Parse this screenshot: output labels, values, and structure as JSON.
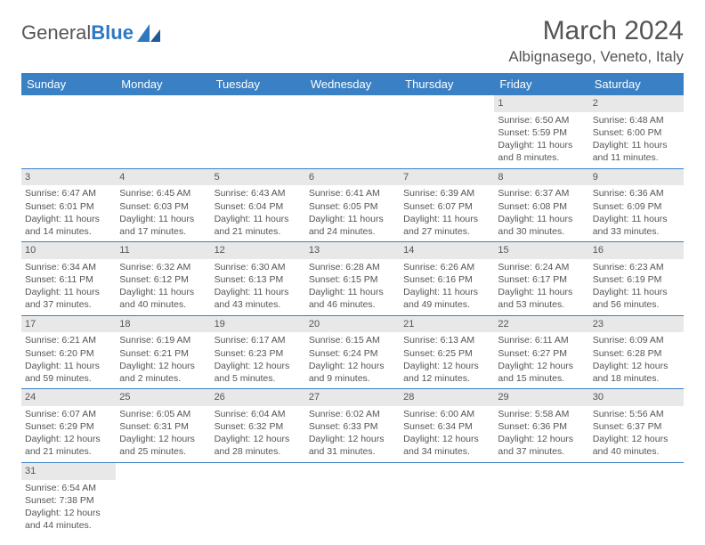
{
  "logo": {
    "text_a": "General",
    "text_b": "Blue"
  },
  "title": "March 2024",
  "location": "Albignasego, Veneto, Italy",
  "colors": {
    "header_bg": "#3a80c4",
    "header_text": "#ffffff",
    "daynum_bg": "#e8e8e8",
    "text": "#555555",
    "row_border": "#3a80c4"
  },
  "day_names": [
    "Sunday",
    "Monday",
    "Tuesday",
    "Wednesday",
    "Thursday",
    "Friday",
    "Saturday"
  ],
  "weeks": [
    [
      null,
      null,
      null,
      null,
      null,
      {
        "n": "1",
        "sr": "Sunrise: 6:50 AM",
        "ss": "Sunset: 5:59 PM",
        "d1": "Daylight: 11 hours",
        "d2": "and 8 minutes."
      },
      {
        "n": "2",
        "sr": "Sunrise: 6:48 AM",
        "ss": "Sunset: 6:00 PM",
        "d1": "Daylight: 11 hours",
        "d2": "and 11 minutes."
      }
    ],
    [
      {
        "n": "3",
        "sr": "Sunrise: 6:47 AM",
        "ss": "Sunset: 6:01 PM",
        "d1": "Daylight: 11 hours",
        "d2": "and 14 minutes."
      },
      {
        "n": "4",
        "sr": "Sunrise: 6:45 AM",
        "ss": "Sunset: 6:03 PM",
        "d1": "Daylight: 11 hours",
        "d2": "and 17 minutes."
      },
      {
        "n": "5",
        "sr": "Sunrise: 6:43 AM",
        "ss": "Sunset: 6:04 PM",
        "d1": "Daylight: 11 hours",
        "d2": "and 21 minutes."
      },
      {
        "n": "6",
        "sr": "Sunrise: 6:41 AM",
        "ss": "Sunset: 6:05 PM",
        "d1": "Daylight: 11 hours",
        "d2": "and 24 minutes."
      },
      {
        "n": "7",
        "sr": "Sunrise: 6:39 AM",
        "ss": "Sunset: 6:07 PM",
        "d1": "Daylight: 11 hours",
        "d2": "and 27 minutes."
      },
      {
        "n": "8",
        "sr": "Sunrise: 6:37 AM",
        "ss": "Sunset: 6:08 PM",
        "d1": "Daylight: 11 hours",
        "d2": "and 30 minutes."
      },
      {
        "n": "9",
        "sr": "Sunrise: 6:36 AM",
        "ss": "Sunset: 6:09 PM",
        "d1": "Daylight: 11 hours",
        "d2": "and 33 minutes."
      }
    ],
    [
      {
        "n": "10",
        "sr": "Sunrise: 6:34 AM",
        "ss": "Sunset: 6:11 PM",
        "d1": "Daylight: 11 hours",
        "d2": "and 37 minutes."
      },
      {
        "n": "11",
        "sr": "Sunrise: 6:32 AM",
        "ss": "Sunset: 6:12 PM",
        "d1": "Daylight: 11 hours",
        "d2": "and 40 minutes."
      },
      {
        "n": "12",
        "sr": "Sunrise: 6:30 AM",
        "ss": "Sunset: 6:13 PM",
        "d1": "Daylight: 11 hours",
        "d2": "and 43 minutes."
      },
      {
        "n": "13",
        "sr": "Sunrise: 6:28 AM",
        "ss": "Sunset: 6:15 PM",
        "d1": "Daylight: 11 hours",
        "d2": "and 46 minutes."
      },
      {
        "n": "14",
        "sr": "Sunrise: 6:26 AM",
        "ss": "Sunset: 6:16 PM",
        "d1": "Daylight: 11 hours",
        "d2": "and 49 minutes."
      },
      {
        "n": "15",
        "sr": "Sunrise: 6:24 AM",
        "ss": "Sunset: 6:17 PM",
        "d1": "Daylight: 11 hours",
        "d2": "and 53 minutes."
      },
      {
        "n": "16",
        "sr": "Sunrise: 6:23 AM",
        "ss": "Sunset: 6:19 PM",
        "d1": "Daylight: 11 hours",
        "d2": "and 56 minutes."
      }
    ],
    [
      {
        "n": "17",
        "sr": "Sunrise: 6:21 AM",
        "ss": "Sunset: 6:20 PM",
        "d1": "Daylight: 11 hours",
        "d2": "and 59 minutes."
      },
      {
        "n": "18",
        "sr": "Sunrise: 6:19 AM",
        "ss": "Sunset: 6:21 PM",
        "d1": "Daylight: 12 hours",
        "d2": "and 2 minutes."
      },
      {
        "n": "19",
        "sr": "Sunrise: 6:17 AM",
        "ss": "Sunset: 6:23 PM",
        "d1": "Daylight: 12 hours",
        "d2": "and 5 minutes."
      },
      {
        "n": "20",
        "sr": "Sunrise: 6:15 AM",
        "ss": "Sunset: 6:24 PM",
        "d1": "Daylight: 12 hours",
        "d2": "and 9 minutes."
      },
      {
        "n": "21",
        "sr": "Sunrise: 6:13 AM",
        "ss": "Sunset: 6:25 PM",
        "d1": "Daylight: 12 hours",
        "d2": "and 12 minutes."
      },
      {
        "n": "22",
        "sr": "Sunrise: 6:11 AM",
        "ss": "Sunset: 6:27 PM",
        "d1": "Daylight: 12 hours",
        "d2": "and 15 minutes."
      },
      {
        "n": "23",
        "sr": "Sunrise: 6:09 AM",
        "ss": "Sunset: 6:28 PM",
        "d1": "Daylight: 12 hours",
        "d2": "and 18 minutes."
      }
    ],
    [
      {
        "n": "24",
        "sr": "Sunrise: 6:07 AM",
        "ss": "Sunset: 6:29 PM",
        "d1": "Daylight: 12 hours",
        "d2": "and 21 minutes."
      },
      {
        "n": "25",
        "sr": "Sunrise: 6:05 AM",
        "ss": "Sunset: 6:31 PM",
        "d1": "Daylight: 12 hours",
        "d2": "and 25 minutes."
      },
      {
        "n": "26",
        "sr": "Sunrise: 6:04 AM",
        "ss": "Sunset: 6:32 PM",
        "d1": "Daylight: 12 hours",
        "d2": "and 28 minutes."
      },
      {
        "n": "27",
        "sr": "Sunrise: 6:02 AM",
        "ss": "Sunset: 6:33 PM",
        "d1": "Daylight: 12 hours",
        "d2": "and 31 minutes."
      },
      {
        "n": "28",
        "sr": "Sunrise: 6:00 AM",
        "ss": "Sunset: 6:34 PM",
        "d1": "Daylight: 12 hours",
        "d2": "and 34 minutes."
      },
      {
        "n": "29",
        "sr": "Sunrise: 5:58 AM",
        "ss": "Sunset: 6:36 PM",
        "d1": "Daylight: 12 hours",
        "d2": "and 37 minutes."
      },
      {
        "n": "30",
        "sr": "Sunrise: 5:56 AM",
        "ss": "Sunset: 6:37 PM",
        "d1": "Daylight: 12 hours",
        "d2": "and 40 minutes."
      }
    ],
    [
      {
        "n": "31",
        "sr": "Sunrise: 6:54 AM",
        "ss": "Sunset: 7:38 PM",
        "d1": "Daylight: 12 hours",
        "d2": "and 44 minutes."
      },
      null,
      null,
      null,
      null,
      null,
      null
    ]
  ]
}
